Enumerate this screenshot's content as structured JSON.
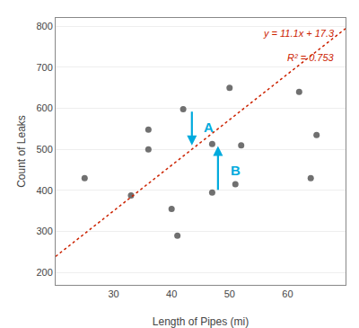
{
  "chart_data": {
    "type": "scatter",
    "xlabel": "Length of Pipes (mi)",
    "ylabel": "Count of Leaks",
    "series": [
      {
        "type": "scatter",
        "color": "#707070",
        "marker": "circle",
        "x": [
          25,
          33,
          36,
          36,
          40,
          41,
          42,
          47,
          47,
          50,
          51,
          52,
          62,
          64,
          65
        ],
        "values": [
          430,
          388,
          500,
          548,
          355,
          290,
          598,
          395,
          513,
          650,
          415,
          510,
          640,
          430,
          535
        ]
      },
      {
        "type": "line",
        "color": "#cc2200",
        "line_style": "dotted",
        "x": [
          20,
          70
        ],
        "values": [
          239.3,
          794.3
        ]
      }
    ],
    "text_notes": [
      {
        "text": "y = 11.1x + 17.3",
        "color": "#cc2200"
      },
      {
        "text": "R² = 0.753",
        "color": "#cc2200"
      }
    ],
    "arrows": [
      {
        "x": 43.5,
        "y_start": 595,
        "y_end": 510,
        "color": "#00aadd"
      },
      {
        "x": 48,
        "y_start": 398,
        "y_end": 508,
        "color": "#00aadd"
      }
    ],
    "annotations": [
      {
        "text": "A",
        "x": 45.2,
        "y": 555,
        "color": "#00aadd"
      },
      {
        "text": "B",
        "x": 49.8,
        "y": 450,
        "color": "#00aadd"
      }
    ],
    "xlim": [
      20,
      70
    ],
    "ylim": [
      170,
      820
    ],
    "xticks": [
      30,
      40,
      50,
      60
    ],
    "yticks": [
      200,
      300,
      400,
      500,
      600,
      700,
      800
    ],
    "grid": "y"
  }
}
